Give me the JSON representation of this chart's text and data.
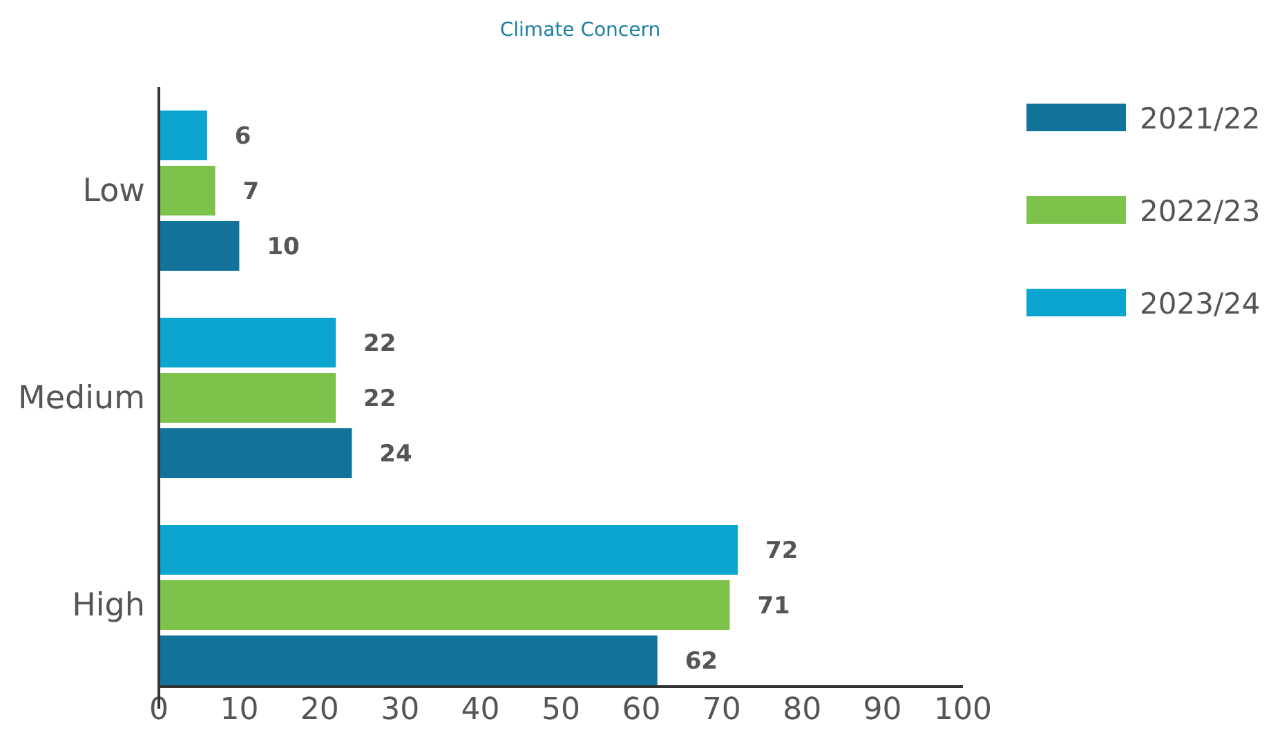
{
  "chart_data": {
    "type": "bar",
    "orientation": "horizontal",
    "title": "Climate Concern",
    "categories": [
      "Low",
      "Medium",
      "High"
    ],
    "series": [
      {
        "name": "2021/22",
        "color": "#12739a",
        "values": [
          10,
          24,
          62
        ]
      },
      {
        "name": "2022/23",
        "color": "#7dc24b",
        "values": [
          7,
          22,
          71
        ]
      },
      {
        "name": "2023/24",
        "color": "#0ba5d0",
        "values": [
          6,
          22,
          72
        ]
      }
    ],
    "xlim": [
      0,
      100
    ],
    "xticks": [
      0,
      10,
      20,
      30,
      40,
      50,
      60,
      70,
      80,
      90,
      100
    ],
    "data_labels": true,
    "grid": false,
    "legend": "top right"
  }
}
